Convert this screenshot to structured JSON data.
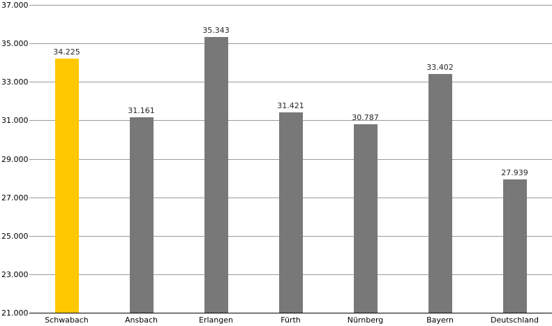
{
  "chart_data": {
    "type": "bar",
    "title": "",
    "xlabel": "",
    "ylabel": "",
    "categories": [
      "Schwabach",
      "Ansbach",
      "Erlangen",
      "Fürth",
      "Nürnberg",
      "Bayern",
      "Deutschland"
    ],
    "values": [
      34225,
      31161,
      35343,
      31421,
      30787,
      33402,
      27939
    ],
    "value_labels": [
      "34.225",
      "31.161",
      "35.343",
      "31.421",
      "30.787",
      "33.402",
      "27.939"
    ],
    "y_ticks": [
      37000,
      35000,
      33000,
      31000,
      29000,
      27000,
      25000,
      23000,
      21000
    ],
    "y_tick_labels": [
      "37.000",
      "35.000",
      "33.000",
      "31.000",
      "29.000",
      "27.000",
      "25.000",
      "23.000",
      "21.000"
    ],
    "ylim": [
      21000,
      37000
    ],
    "grid": true,
    "legend": false,
    "highlight_index": 0,
    "colors": {
      "highlight_bar": "#FFC800",
      "default_bar": "#787878",
      "gridline": "#999999",
      "axis_line": "#000000",
      "label_text": "#000000"
    }
  }
}
